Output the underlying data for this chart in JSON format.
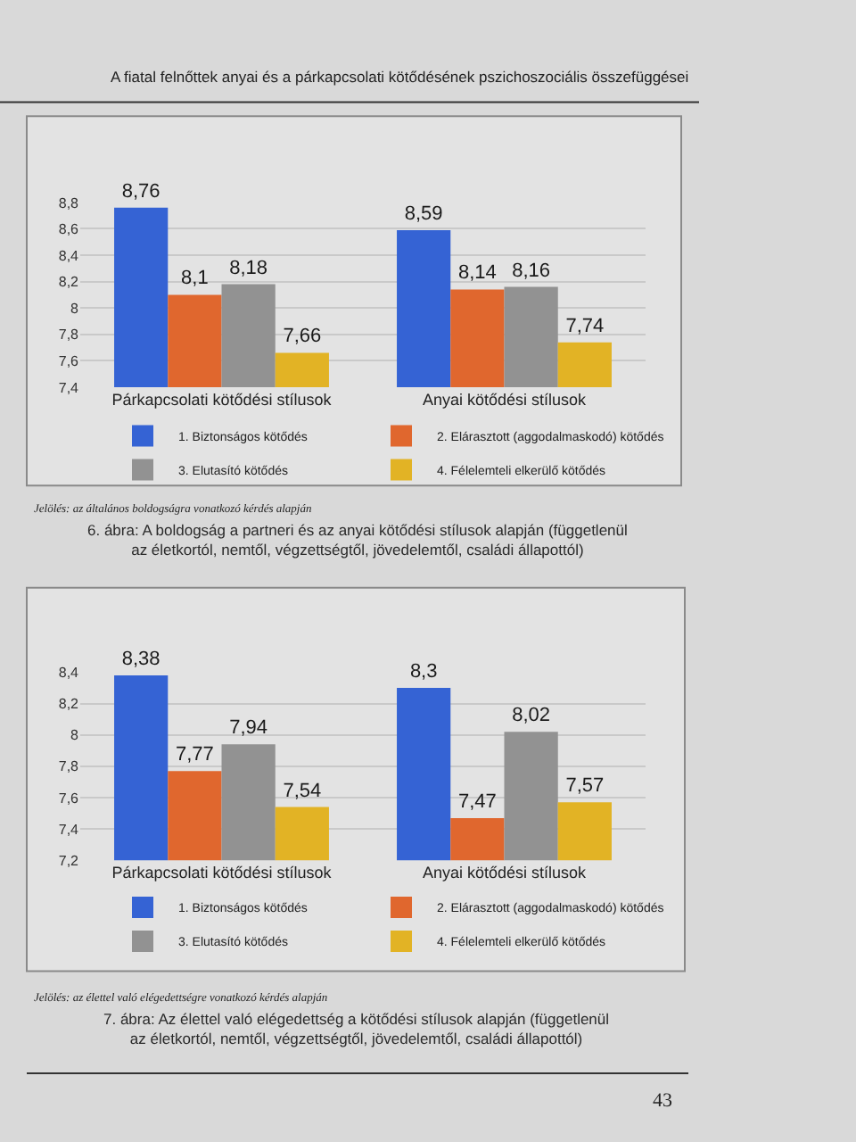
{
  "chart_data": [
    {
      "type": "bar",
      "title": "6. ábra: A boldogság a partneri és az anyai kötődési stílusok alapján (függetlenül az életkortól, nemtől, végzettségtől, jövedelemtől, családi állapottól)",
      "annotations": [
        "A fiatal felnőttek anyai és a párkapcsolati kötődésének pszichoszociális összefüggései",
        "Jelölés: az általános boldogságra vonatkozó kérdés alapján"
      ],
      "categories": [
        "Párkapcsolati kötődési stílusok",
        "Anyai kötődési stílusok"
      ],
      "series": [
        {
          "name": "1. Biztonságos kötődés",
          "color": "#3563d4",
          "values": [
            8.76,
            8.59
          ],
          "value_labels": [
            "8,76",
            "8,59"
          ]
        },
        {
          "name": "2. Elárasztott (aggodalmaskodó) kötődés",
          "color": "#e0672e",
          "values": [
            8.1,
            8.14
          ],
          "value_labels": [
            "8,1",
            "8,14"
          ]
        },
        {
          "name": "3. Elutasító kötődés",
          "color": "#929292",
          "values": [
            8.18,
            8.16
          ],
          "value_labels": [
            "8,18",
            "8,16"
          ]
        },
        {
          "name": "4. Félelemteli elkerülő kötődés",
          "color": "#e2b325",
          "values": [
            7.66,
            7.74
          ],
          "value_labels": [
            "7,66",
            "7,74"
          ]
        }
      ],
      "ylim": [
        7.4,
        8.8
      ],
      "yticks": [
        {
          "value": 7.4,
          "label": "7,4"
        },
        {
          "value": 7.6,
          "label": "7,6"
        },
        {
          "value": 7.8,
          "label": "7,8"
        },
        8,
        {
          "value": 8.2,
          "label": "8,2"
        },
        {
          "value": 8.4,
          "label": "8,4"
        },
        {
          "value": 8.6,
          "label": "8,6"
        },
        {
          "value": 8.8,
          "label": "8,8"
        }
      ],
      "grid": "y",
      "legend": "bottom"
    },
    {
      "type": "bar",
      "title": "7. ábra: Az élettel való elégedettség a kötődési stílusok alapján (függetlenül az életkortól, nemtől, végzettségtől, jövedelemtől, családi állapottól)",
      "annotations": [
        "Jelölés: az élettel való elégedettségre vonatkozó kérdés alapján",
        "43"
      ],
      "categories": [
        "Párkapcsolati kötődési stílusok",
        "Anyai kötődési stílusok"
      ],
      "series": [
        {
          "name": "1. Biztonságos kötődés",
          "color": "#3563d4",
          "values": [
            8.38,
            8.3
          ],
          "value_labels": [
            "8,38",
            "8,3"
          ]
        },
        {
          "name": "2. Elárasztott (aggodalmaskodó) kötődés",
          "color": "#e0672e",
          "values": [
            7.77,
            7.47
          ],
          "value_labels": [
            "7,77",
            "7,47"
          ]
        },
        {
          "name": "3. Elutasító kötődés",
          "color": "#929292",
          "values": [
            7.94,
            8.02
          ],
          "value_labels": [
            "7,94",
            "8,02"
          ]
        },
        {
          "name": "4. Félelemteli elkerülő kötődés",
          "color": "#e2b325",
          "values": [
            7.54,
            7.57
          ],
          "value_labels": [
            "7,54",
            "7,57"
          ]
        }
      ],
      "ylim": [
        7.2,
        8.4
      ],
      "yticks": [
        {
          "value": 7.2,
          "label": "7,2"
        },
        {
          "value": 7.4,
          "label": "7,4"
        },
        {
          "value": 7.6,
          "label": "7,6"
        },
        {
          "value": 7.8,
          "label": "7,8"
        },
        8,
        {
          "value": 8.2,
          "label": "8,2"
        },
        {
          "value": 8.4,
          "label": "8,4"
        }
      ],
      "grid": "y",
      "legend": "bottom"
    }
  ]
}
